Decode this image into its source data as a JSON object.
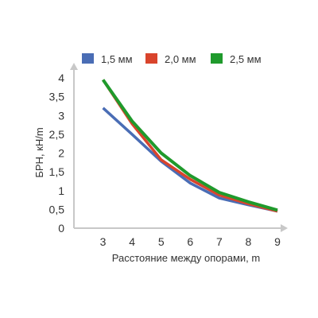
{
  "chart_data": {
    "type": "line",
    "title": "",
    "xlabel": "Расстояние между опорами, m",
    "ylabel": "БРН, кН/m",
    "x": [
      3,
      4,
      5,
      6,
      7,
      8,
      9
    ],
    "x_ticks": [
      "3",
      "4",
      "5",
      "6",
      "7",
      "8",
      "9"
    ],
    "y_ticks": [
      "0",
      "0,5",
      "1",
      "1,5",
      "2",
      "2,5",
      "3",
      "3,5",
      "4"
    ],
    "y_tick_values": [
      0,
      0.5,
      1,
      1.5,
      2,
      2.5,
      3,
      3.5,
      4
    ],
    "xlim": [
      2,
      9
    ],
    "ylim": [
      0,
      4
    ],
    "grid": false,
    "legend_position": "top",
    "series": [
      {
        "name": "1,5 мм",
        "color": "#4a6db5",
        "values": [
          3.2,
          2.5,
          1.78,
          1.2,
          0.8,
          0.62,
          0.45
        ]
      },
      {
        "name": "2,0 мм",
        "color": "#d9442c",
        "values": [
          3.95,
          2.78,
          1.82,
          1.3,
          0.88,
          0.65,
          0.45
        ]
      },
      {
        "name": "2,5 мм",
        "color": "#1f9a2c",
        "values": [
          3.95,
          2.85,
          2.0,
          1.4,
          0.95,
          0.7,
          0.48
        ]
      }
    ]
  }
}
